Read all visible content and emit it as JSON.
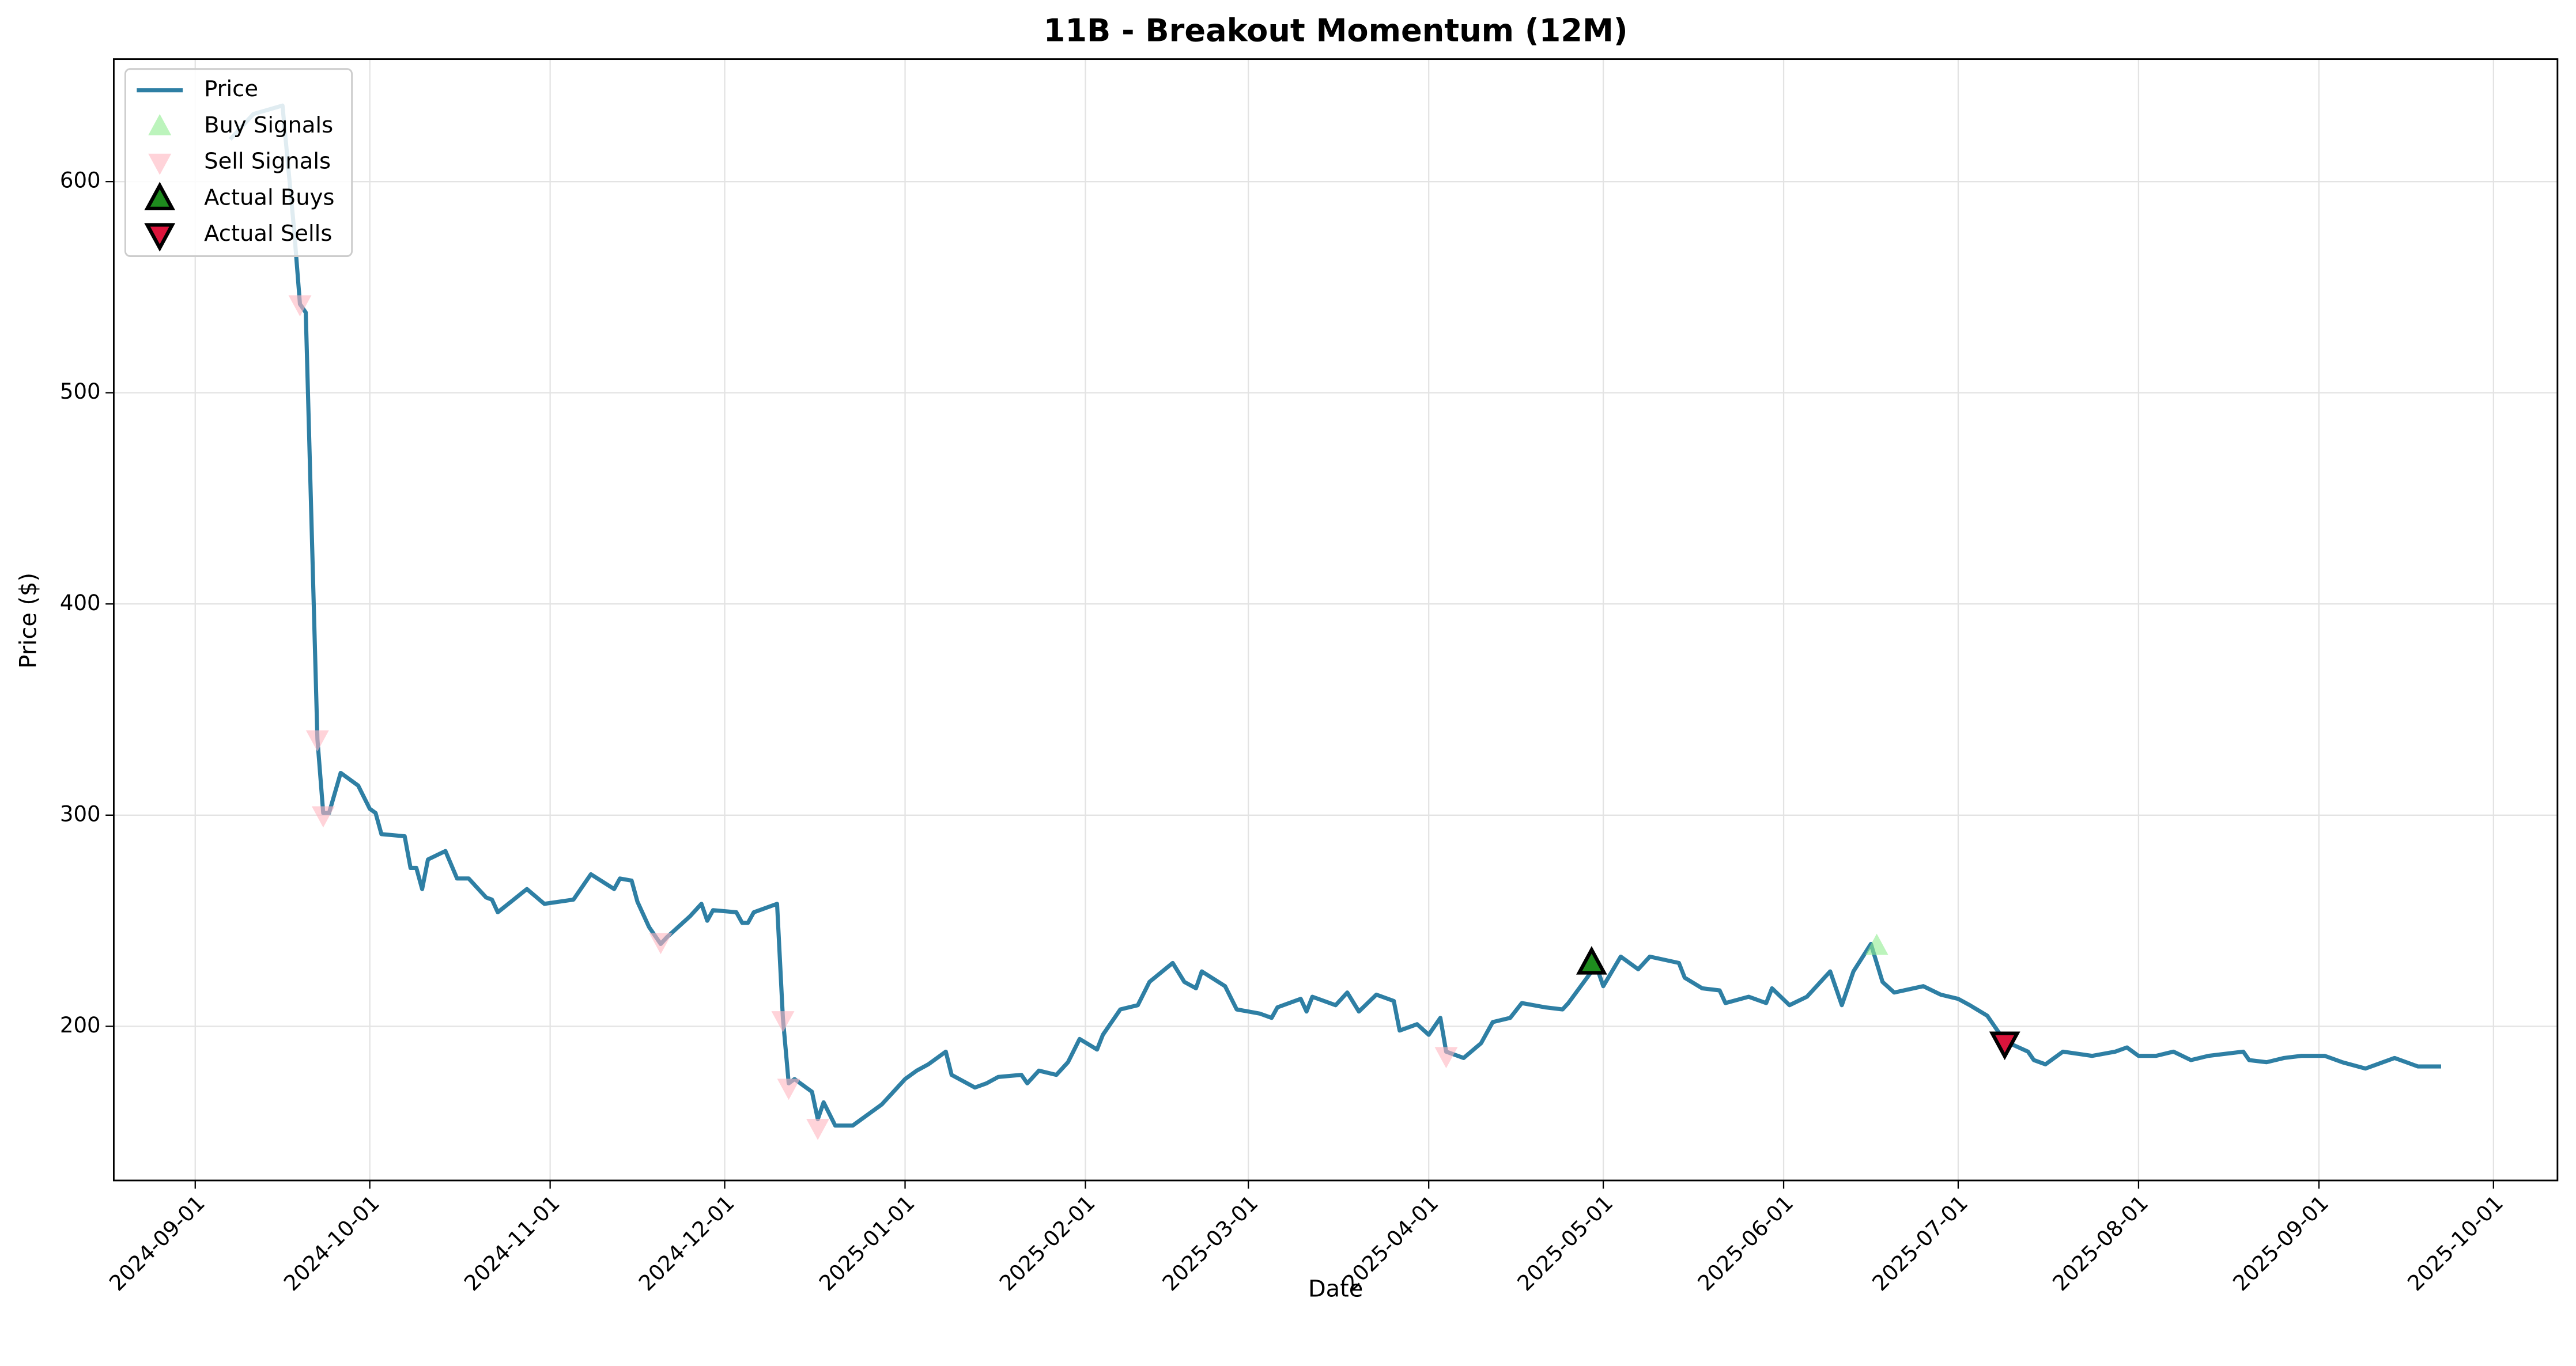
{
  "chart_data": {
    "type": "line",
    "title": "11B - Breakout Momentum (12M)",
    "x_label": "Date",
    "y_label": "Price ($)",
    "xlim": [
      "2024-08-18",
      "2025-10-12"
    ],
    "xticks": [
      "2024-09-01",
      "2024-10-01",
      "2024-11-01",
      "2024-12-01",
      "2025-01-01",
      "2025-02-01",
      "2025-03-01",
      "2025-04-01",
      "2025-05-01",
      "2025-06-01",
      "2025-07-01",
      "2025-08-01",
      "2025-09-01",
      "2025-10-01"
    ],
    "ylim": [
      127,
      658
    ],
    "yticks": [
      200,
      300,
      400,
      500,
      600
    ],
    "grid": true,
    "legend": "upper left",
    "series": [
      {
        "name": "Price",
        "type": "line",
        "color": "#2e7fa4",
        "x": [
          "2024-09-07",
          "2024-09-11",
          "2024-09-16",
          "2024-09-18",
          "2024-09-19",
          "2024-09-20",
          "2024-09-22",
          "2024-09-23",
          "2024-09-24",
          "2024-09-26",
          "2024-09-29",
          "2024-10-01",
          "2024-10-02",
          "2024-10-03",
          "2024-10-07",
          "2024-10-08",
          "2024-10-09",
          "2024-10-10",
          "2024-10-11",
          "2024-10-14",
          "2024-10-16",
          "2024-10-18",
          "2024-10-21",
          "2024-10-22",
          "2024-10-23",
          "2024-10-28",
          "2024-10-31",
          "2024-11-05",
          "2024-11-07",
          "2024-11-08",
          "2024-11-12",
          "2024-11-13",
          "2024-11-15",
          "2024-11-16",
          "2024-11-18",
          "2024-11-20",
          "2024-11-21",
          "2024-11-25",
          "2024-11-27",
          "2024-11-28",
          "2024-11-29",
          "2024-12-03",
          "2024-12-04",
          "2024-12-05",
          "2024-12-06",
          "2024-12-10",
          "2024-12-11",
          "2024-12-12",
          "2024-12-13",
          "2024-12-16",
          "2024-12-17",
          "2024-12-18",
          "2024-12-20",
          "2024-12-23",
          "2024-12-28",
          "2025-01-01",
          "2025-01-03",
          "2025-01-05",
          "2025-01-08",
          "2025-01-09",
          "2025-01-13",
          "2025-01-15",
          "2025-01-17",
          "2025-01-21",
          "2025-01-22",
          "2025-01-24",
          "2025-01-27",
          "2025-01-29",
          "2025-01-31",
          "2025-02-03",
          "2025-02-04",
          "2025-02-07",
          "2025-02-10",
          "2025-02-12",
          "2025-02-16",
          "2025-02-18",
          "2025-02-20",
          "2025-02-21",
          "2025-02-25",
          "2025-02-27",
          "2025-03-03",
          "2025-03-05",
          "2025-03-06",
          "2025-03-10",
          "2025-03-11",
          "2025-03-12",
          "2025-03-16",
          "2025-03-18",
          "2025-03-20",
          "2025-03-23",
          "2025-03-26",
          "2025-03-27",
          "2025-03-30",
          "2025-04-01",
          "2025-04-03",
          "2025-04-04",
          "2025-04-07",
          "2025-04-10",
          "2025-04-12",
          "2025-04-15",
          "2025-04-17",
          "2025-04-21",
          "2025-04-24",
          "2025-04-25",
          "2025-04-29",
          "2025-04-30",
          "2025-05-01",
          "2025-05-04",
          "2025-05-07",
          "2025-05-09",
          "2025-05-14",
          "2025-05-15",
          "2025-05-18",
          "2025-05-21",
          "2025-05-22",
          "2025-05-26",
          "2025-05-29",
          "2025-05-30",
          "2025-06-02",
          "2025-06-05",
          "2025-06-09",
          "2025-06-11",
          "2025-06-13",
          "2025-06-16",
          "2025-06-18",
          "2025-06-20",
          "2025-06-25",
          "2025-06-28",
          "2025-07-01",
          "2025-07-03",
          "2025-07-06",
          "2025-07-09",
          "2025-07-13",
          "2025-07-14",
          "2025-07-16",
          "2025-07-19",
          "2025-07-24",
          "2025-07-28",
          "2025-07-30",
          "2025-08-01",
          "2025-08-04",
          "2025-08-07",
          "2025-08-10",
          "2025-08-13",
          "2025-08-19",
          "2025-08-20",
          "2025-08-23",
          "2025-08-26",
          "2025-08-29",
          "2025-09-02",
          "2025-09-05",
          "2025-09-09",
          "2025-09-11",
          "2025-09-14",
          "2025-09-16",
          "2025-09-18",
          "2025-09-22"
        ],
        "values": [
          620,
          632,
          636,
          577,
          542,
          538,
          336,
          301,
          301,
          320,
          314,
          303,
          301,
          291,
          290,
          275,
          275,
          265,
          279,
          283,
          270,
          270,
          261,
          260,
          254,
          265,
          258,
          260,
          268,
          272,
          265,
          270,
          269,
          259,
          247,
          239,
          242,
          252,
          258,
          250,
          255,
          254,
          249,
          249,
          254,
          258,
          204,
          173,
          175,
          169,
          156,
          164,
          153,
          153,
          163,
          175,
          179,
          182,
          188,
          177,
          171,
          173,
          176,
          177,
          173,
          179,
          177,
          183,
          194,
          189,
          196,
          208,
          210,
          221,
          230,
          221,
          218,
          226,
          219,
          208,
          206,
          204,
          209,
          213,
          207,
          214,
          210,
          216,
          207,
          215,
          212,
          198,
          201,
          196,
          204,
          188,
          185,
          192,
          202,
          204,
          211,
          209,
          208,
          211,
          226,
          227,
          219,
          233,
          227,
          233,
          230,
          223,
          218,
          217,
          211,
          214,
          211,
          218,
          210,
          214,
          226,
          210,
          226,
          239,
          221,
          216,
          219,
          215,
          213,
          210,
          205,
          193,
          188,
          184,
          182,
          188,
          186,
          188,
          190,
          186,
          186,
          188,
          184,
          186,
          188,
          184,
          183,
          185,
          186,
          186,
          183,
          180,
          182,
          185,
          183,
          181,
          181
        ]
      },
      {
        "name": "Buy Signals",
        "type": "scatter",
        "marker": "triangle-up",
        "color": "#90ee90",
        "edge_color": "#90ee90",
        "opacity": 0.6,
        "x": [
          "2025-06-17"
        ],
        "values": [
          238
        ]
      },
      {
        "name": "Sell Signals",
        "type": "scatter",
        "marker": "triangle-down",
        "color": "#ffb6c1",
        "edge_color": "#ffb6c1",
        "opacity": 0.6,
        "x": [
          "2024-09-19",
          "2024-09-22",
          "2024-09-23",
          "2024-11-20",
          "2024-12-11",
          "2024-12-12",
          "2024-12-17",
          "2025-04-04"
        ],
        "values": [
          542,
          336,
          300,
          240,
          203,
          171,
          152,
          186
        ]
      },
      {
        "name": "Actual Buys",
        "type": "scatter",
        "marker": "triangle-up",
        "color": "#1e8c1e",
        "edge_color": "#000000",
        "opacity": 1,
        "x": [
          "2025-04-29"
        ],
        "values": [
          230
        ]
      },
      {
        "name": "Actual Sells",
        "type": "scatter",
        "marker": "triangle-down",
        "color": "#dc143c",
        "edge_color": "#000000",
        "opacity": 1,
        "x": [
          "2025-07-09"
        ],
        "values": [
          192
        ]
      }
    ]
  }
}
